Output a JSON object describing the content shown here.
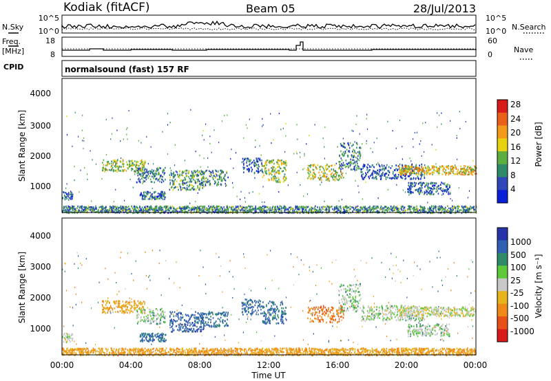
{
  "header": {
    "station": "Kodiak (fitACF)",
    "beam": "Beam 05",
    "date": "28/Jul/2013"
  },
  "top_panels": {
    "nsky_label": "N.Sky",
    "nsearch_label": "N.Search",
    "noise_ticks_left": [
      "10^5",
      "10^0"
    ],
    "noise_ticks_right": [
      "10^5",
      "10^0"
    ],
    "freq_label_line1": "Freq.",
    "freq_label_line2": "[MHz]",
    "freq_ticks": [
      "18",
      "8"
    ],
    "nave_label": "Nave",
    "nave_ticks": [
      "60",
      "0"
    ],
    "cpid_label": "CPID",
    "cpid_text": "normalsound (fast) 157 RF"
  },
  "colors": {
    "power": [
      "#0a1fd8",
      "#2f47b8",
      "#2f8a6a",
      "#5cae3f",
      "#e6d20f",
      "#f39a1a",
      "#e8601a",
      "#d81a1a"
    ],
    "velocity": [
      "#2733a6",
      "#2f5fb0",
      "#2f8a6a",
      "#5ec93a",
      "#c8c8c8",
      "#e8b31c",
      "#ef8a1a",
      "#e8501a",
      "#d81a1a"
    ]
  },
  "chart_data": [
    {
      "type": "heatmap",
      "title": "Power",
      "xlabel": "Time UT",
      "ylabel": "Slant Range [km]",
      "x_ticks": [
        "00:00",
        "04:00",
        "08:00",
        "12:00",
        "16:00",
        "20:00",
        "00:00"
      ],
      "y_ticks": [
        1000,
        2000,
        3000,
        4000
      ],
      "xlim_hours": [
        0,
        24
      ],
      "ylim_km": [
        180,
        4600
      ],
      "colorbar_label": "Power [dB]",
      "colorbar_ticks": [
        4,
        8,
        12,
        16,
        20,
        24,
        28
      ],
      "clim": [
        0,
        30
      ],
      "regions": [
        {
          "t": [
            0.0,
            0.6
          ],
          "r": [
            600,
            900
          ],
          "v": 7
        },
        {
          "t": [
            2.3,
            4.8
          ],
          "r": [
            1550,
            1950
          ],
          "v": 15
        },
        {
          "t": [
            4.3,
            6.0
          ],
          "r": [
            1200,
            1700
          ],
          "v": 9
        },
        {
          "t": [
            4.5,
            6.0
          ],
          "r": [
            640,
            900
          ],
          "v": 8
        },
        {
          "t": [
            6.2,
            8.2
          ],
          "r": [
            950,
            1600
          ],
          "v": 12
        },
        {
          "t": [
            8.0,
            9.6
          ],
          "r": [
            1100,
            1600
          ],
          "v": 10
        },
        {
          "t": [
            10.4,
            11.6
          ],
          "r": [
            1500,
            2000
          ],
          "v": 6
        },
        {
          "t": [
            11.6,
            13.0
          ],
          "r": [
            1200,
            1950
          ],
          "v": 16
        },
        {
          "t": [
            14.2,
            16.3
          ],
          "r": [
            1250,
            1800
          ],
          "v": 17
        },
        {
          "t": [
            16.0,
            17.3
          ],
          "r": [
            1600,
            2500
          ],
          "v": 9
        },
        {
          "t": [
            17.3,
            21.0
          ],
          "r": [
            1300,
            1800
          ],
          "v": 6
        },
        {
          "t": [
            19.5,
            24.0
          ],
          "r": [
            1450,
            1750
          ],
          "v": 19
        },
        {
          "t": [
            20.0,
            22.5
          ],
          "r": [
            800,
            1200
          ],
          "v": 7
        },
        {
          "t": [
            0.0,
            24.0
          ],
          "r": [
            190,
            420
          ],
          "v": 10
        }
      ]
    },
    {
      "type": "heatmap",
      "title": "Velocity",
      "xlabel": "Time UT",
      "ylabel": "Slant Range [km]",
      "x_ticks": [
        "00:00",
        "04:00",
        "08:00",
        "12:00",
        "16:00",
        "20:00",
        "00:00"
      ],
      "y_ticks": [
        1000,
        2000,
        3000,
        4000
      ],
      "xlim_hours": [
        0,
        24
      ],
      "ylim_km": [
        180,
        4600
      ],
      "colorbar_label": "Velocity [m s⁻¹]",
      "colorbar_ticks": [
        1000,
        500,
        100,
        25,
        -25,
        -100,
        -500,
        -1000
      ],
      "regions": [
        {
          "t": [
            0.0,
            0.6
          ],
          "r": [
            600,
            900
          ],
          "v": 0
        },
        {
          "t": [
            2.3,
            4.8
          ],
          "r": [
            1550,
            1950
          ],
          "v": -80
        },
        {
          "t": [
            4.3,
            6.0
          ],
          "r": [
            1200,
            1700
          ],
          "v": 5
        },
        {
          "t": [
            4.5,
            6.0
          ],
          "r": [
            640,
            900
          ],
          "v": 150
        },
        {
          "t": [
            6.2,
            8.2
          ],
          "r": [
            950,
            1600
          ],
          "v": 300
        },
        {
          "t": [
            8.0,
            9.6
          ],
          "r": [
            1100,
            1600
          ],
          "v": 150
        },
        {
          "t": [
            10.4,
            11.6
          ],
          "r": [
            1500,
            2000
          ],
          "v": 200
        },
        {
          "t": [
            11.6,
            13.0
          ],
          "r": [
            1200,
            1950
          ],
          "v": 120
        },
        {
          "t": [
            14.2,
            16.3
          ],
          "r": [
            1250,
            1800
          ],
          "v": -400
        },
        {
          "t": [
            16.0,
            17.3
          ],
          "r": [
            1600,
            2500
          ],
          "v": 10
        },
        {
          "t": [
            17.3,
            21.0
          ],
          "r": [
            1300,
            1800
          ],
          "v": 0
        },
        {
          "t": [
            19.5,
            24.0
          ],
          "r": [
            1450,
            1750
          ],
          "v": -10
        },
        {
          "t": [
            20.0,
            22.5
          ],
          "r": [
            800,
            1200
          ],
          "v": 5
        },
        {
          "t": [
            0.0,
            24.0
          ],
          "r": [
            190,
            420
          ],
          "v": -100
        }
      ]
    }
  ]
}
